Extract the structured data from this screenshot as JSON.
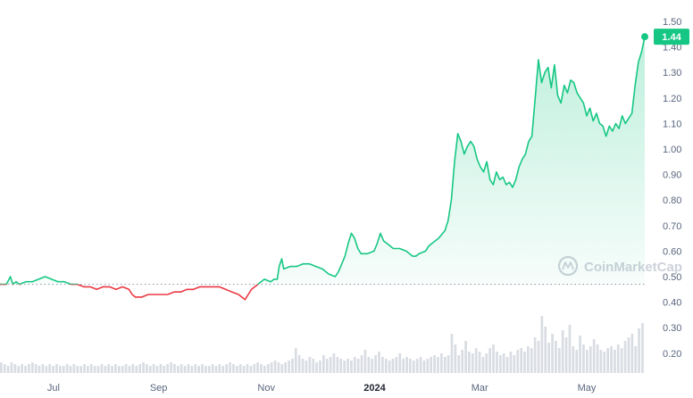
{
  "chart_data": {
    "type": "area",
    "title": "",
    "xlabel": "",
    "ylabel": "",
    "ylim": [
      0.12,
      1.52
    ],
    "y_ticks": [
      "1.50",
      "1.40",
      "1.30",
      "1.20",
      "1.10",
      "1.00",
      "0.90",
      "0.80",
      "0.70",
      "0.60",
      "0.50",
      "0.40",
      "0.30",
      "0.20"
    ],
    "x_ticks": [
      {
        "label": "Jul",
        "t": 0.083,
        "bold": false
      },
      {
        "label": "Sep",
        "t": 0.246,
        "bold": false
      },
      {
        "label": "Nov",
        "t": 0.413,
        "bold": false
      },
      {
        "label": "2024",
        "t": 0.581,
        "bold": true
      },
      {
        "label": "Mar",
        "t": 0.744,
        "bold": false
      },
      {
        "label": "May",
        "t": 0.91,
        "bold": false
      }
    ],
    "baseline": 0.47,
    "current_price_label": "1.44",
    "watermark": "CoinMarketCap",
    "colors": {
      "up": "#16c784",
      "down": "#ea3943",
      "axis_text": "#58667e",
      "volume": "#d9dde3",
      "badge_text": "#ffffff"
    },
    "series": [
      {
        "points": [
          [
            0.0,
            0.47
          ],
          [
            0.01,
            0.47
          ],
          [
            0.016,
            0.5
          ],
          [
            0.02,
            0.47
          ],
          [
            0.025,
            0.48
          ],
          [
            0.03,
            0.47
          ],
          [
            0.04,
            0.48
          ],
          [
            0.05,
            0.48
          ],
          [
            0.06,
            0.49
          ],
          [
            0.07,
            0.5
          ],
          [
            0.08,
            0.49
          ],
          [
            0.09,
            0.48
          ],
          [
            0.1,
            0.48
          ],
          [
            0.11,
            0.47
          ],
          [
            0.12,
            0.47
          ],
          [
            0.13,
            0.46
          ],
          [
            0.14,
            0.46
          ],
          [
            0.15,
            0.45
          ],
          [
            0.16,
            0.46
          ],
          [
            0.17,
            0.46
          ],
          [
            0.18,
            0.45
          ],
          [
            0.19,
            0.46
          ],
          [
            0.2,
            0.45
          ],
          [
            0.205,
            0.43
          ],
          [
            0.21,
            0.42
          ],
          [
            0.22,
            0.42
          ],
          [
            0.23,
            0.43
          ],
          [
            0.24,
            0.43
          ],
          [
            0.25,
            0.43
          ],
          [
            0.26,
            0.43
          ],
          [
            0.27,
            0.44
          ],
          [
            0.28,
            0.44
          ],
          [
            0.29,
            0.45
          ],
          [
            0.3,
            0.45
          ],
          [
            0.31,
            0.46
          ],
          [
            0.32,
            0.46
          ],
          [
            0.33,
            0.46
          ],
          [
            0.34,
            0.46
          ],
          [
            0.35,
            0.45
          ],
          [
            0.36,
            0.44
          ],
          [
            0.37,
            0.43
          ],
          [
            0.38,
            0.41
          ],
          [
            0.385,
            0.43
          ],
          [
            0.39,
            0.45
          ],
          [
            0.4,
            0.47
          ],
          [
            0.405,
            0.48
          ],
          [
            0.41,
            0.49
          ],
          [
            0.42,
            0.48
          ],
          [
            0.425,
            0.49
          ],
          [
            0.43,
            0.49
          ],
          [
            0.433,
            0.54
          ],
          [
            0.437,
            0.57
          ],
          [
            0.44,
            0.53
          ],
          [
            0.45,
            0.54
          ],
          [
            0.46,
            0.54
          ],
          [
            0.47,
            0.55
          ],
          [
            0.48,
            0.55
          ],
          [
            0.49,
            0.54
          ],
          [
            0.5,
            0.53
          ],
          [
            0.51,
            0.51
          ],
          [
            0.52,
            0.5
          ],
          [
            0.525,
            0.52
          ],
          [
            0.53,
            0.55
          ],
          [
            0.535,
            0.58
          ],
          [
            0.54,
            0.63
          ],
          [
            0.545,
            0.67
          ],
          [
            0.55,
            0.65
          ],
          [
            0.555,
            0.61
          ],
          [
            0.56,
            0.59
          ],
          [
            0.57,
            0.59
          ],
          [
            0.58,
            0.6
          ],
          [
            0.585,
            0.63
          ],
          [
            0.59,
            0.67
          ],
          [
            0.595,
            0.64
          ],
          [
            0.6,
            0.63
          ],
          [
            0.61,
            0.61
          ],
          [
            0.62,
            0.61
          ],
          [
            0.63,
            0.6
          ],
          [
            0.64,
            0.58
          ],
          [
            0.645,
            0.58
          ],
          [
            0.65,
            0.59
          ],
          [
            0.66,
            0.6
          ],
          [
            0.665,
            0.62
          ],
          [
            0.67,
            0.63
          ],
          [
            0.68,
            0.65
          ],
          [
            0.69,
            0.68
          ],
          [
            0.695,
            0.72
          ],
          [
            0.7,
            0.8
          ],
          [
            0.705,
            0.95
          ],
          [
            0.71,
            1.06
          ],
          [
            0.715,
            1.03
          ],
          [
            0.72,
            0.98
          ],
          [
            0.725,
            1.01
          ],
          [
            0.73,
            1.03
          ],
          [
            0.735,
            1.01
          ],
          [
            0.74,
            0.96
          ],
          [
            0.745,
            0.93
          ],
          [
            0.75,
            0.91
          ],
          [
            0.755,
            0.95
          ],
          [
            0.76,
            0.88
          ],
          [
            0.765,
            0.86
          ],
          [
            0.77,
            0.91
          ],
          [
            0.775,
            0.88
          ],
          [
            0.78,
            0.89
          ],
          [
            0.785,
            0.86
          ],
          [
            0.79,
            0.87
          ],
          [
            0.795,
            0.85
          ],
          [
            0.8,
            0.88
          ],
          [
            0.805,
            0.93
          ],
          [
            0.81,
            0.96
          ],
          [
            0.815,
            0.98
          ],
          [
            0.82,
            1.03
          ],
          [
            0.825,
            1.05
          ],
          [
            0.83,
            1.2
          ],
          [
            0.835,
            1.35
          ],
          [
            0.84,
            1.26
          ],
          [
            0.845,
            1.3
          ],
          [
            0.85,
            1.32
          ],
          [
            0.855,
            1.24
          ],
          [
            0.86,
            1.33
          ],
          [
            0.865,
            1.21
          ],
          [
            0.87,
            1.18
          ],
          [
            0.875,
            1.25
          ],
          [
            0.88,
            1.22
          ],
          [
            0.885,
            1.27
          ],
          [
            0.89,
            1.26
          ],
          [
            0.895,
            1.22
          ],
          [
            0.9,
            1.2
          ],
          [
            0.905,
            1.18
          ],
          [
            0.91,
            1.13
          ],
          [
            0.915,
            1.16
          ],
          [
            0.92,
            1.11
          ],
          [
            0.925,
            1.14
          ],
          [
            0.93,
            1.1
          ],
          [
            0.935,
            1.09
          ],
          [
            0.94,
            1.05
          ],
          [
            0.945,
            1.09
          ],
          [
            0.95,
            1.07
          ],
          [
            0.955,
            1.1
          ],
          [
            0.96,
            1.08
          ],
          [
            0.965,
            1.13
          ],
          [
            0.97,
            1.1
          ],
          [
            0.975,
            1.12
          ],
          [
            0.98,
            1.14
          ],
          [
            0.985,
            1.25
          ],
          [
            0.99,
            1.34
          ],
          [
            0.995,
            1.38
          ],
          [
            1.0,
            1.44
          ]
        ],
        "volume": [
          0.06,
          0.05,
          0.04,
          0.06,
          0.05,
          0.04,
          0.05,
          0.04,
          0.05,
          0.06,
          0.05,
          0.04,
          0.05,
          0.04,
          0.05,
          0.04,
          0.05,
          0.04,
          0.04,
          0.05,
          0.04,
          0.05,
          0.04,
          0.04,
          0.05,
          0.04,
          0.05,
          0.04,
          0.04,
          0.05,
          0.04,
          0.05,
          0.04,
          0.05,
          0.04,
          0.04,
          0.05,
          0.04,
          0.05,
          0.04,
          0.05,
          0.06,
          0.05,
          0.04,
          0.05,
          0.04,
          0.05,
          0.04,
          0.05,
          0.06,
          0.05,
          0.04,
          0.05,
          0.04,
          0.05,
          0.04,
          0.05,
          0.04,
          0.05,
          0.04,
          0.04,
          0.05,
          0.04,
          0.05,
          0.04,
          0.05,
          0.06,
          0.05,
          0.04,
          0.05,
          0.04,
          0.05,
          0.04,
          0.05,
          0.06,
          0.05,
          0.04,
          0.05,
          0.06,
          0.07,
          0.06,
          0.05,
          0.06,
          0.07,
          0.08,
          0.14,
          0.1,
          0.08,
          0.07,
          0.09,
          0.08,
          0.06,
          0.07,
          0.1,
          0.08,
          0.09,
          0.11,
          0.09,
          0.08,
          0.07,
          0.08,
          0.07,
          0.09,
          0.08,
          0.1,
          0.13,
          0.09,
          0.08,
          0.1,
          0.12,
          0.09,
          0.08,
          0.07,
          0.08,
          0.09,
          0.11,
          0.08,
          0.09,
          0.08,
          0.07,
          0.08,
          0.09,
          0.07,
          0.08,
          0.09,
          0.1,
          0.09,
          0.11,
          0.09,
          0.1,
          0.22,
          0.16,
          0.1,
          0.13,
          0.18,
          0.12,
          0.11,
          0.14,
          0.12,
          0.09,
          0.11,
          0.14,
          0.16,
          0.12,
          0.1,
          0.11,
          0.09,
          0.12,
          0.1,
          0.13,
          0.14,
          0.12,
          0.15,
          0.14,
          0.2,
          0.18,
          0.32,
          0.26,
          0.17,
          0.22,
          0.18,
          0.14,
          0.24,
          0.2,
          0.27,
          0.15,
          0.13,
          0.21,
          0.16,
          0.13,
          0.15,
          0.19,
          0.16,
          0.13,
          0.12,
          0.14,
          0.15,
          0.13,
          0.16,
          0.14,
          0.18,
          0.2,
          0.22,
          0.15,
          0.25,
          0.28
        ]
      }
    ]
  }
}
